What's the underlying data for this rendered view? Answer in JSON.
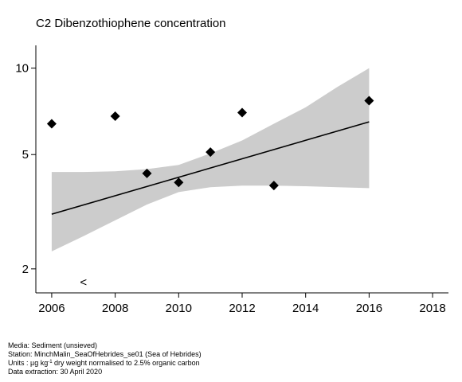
{
  "chart_data": {
    "type": "line",
    "title": "C2 Dibenzothiophene concentration",
    "xlabel": "",
    "ylabel": "",
    "y_scale": "log",
    "xlim": [
      2005.5,
      2018.5
    ],
    "ylim": [
      1.65,
      12
    ],
    "x_ticks": [
      2006,
      2008,
      2010,
      2012,
      2014,
      2016,
      2018
    ],
    "y_ticks": [
      2,
      5,
      10
    ],
    "grid": false,
    "legend": "none",
    "series": [
      {
        "type": "scatter",
        "x": [
          2006,
          2008,
          2009,
          2010,
          2011,
          2012,
          2013,
          2016
        ],
        "y": [
          6.4,
          6.8,
          4.3,
          4.0,
          5.1,
          7.0,
          3.9,
          7.7
        ]
      }
    ],
    "trend": {
      "x": [
        2006,
        2016
      ],
      "y": [
        3.1,
        6.5
      ]
    },
    "confidence_band": {
      "x": [
        2006,
        2007,
        2008,
        2009,
        2010,
        2011,
        2012,
        2013,
        2014,
        2015,
        2016
      ],
      "lower": [
        2.3,
        2.6,
        2.95,
        3.35,
        3.7,
        3.85,
        3.9,
        3.9,
        3.88,
        3.85,
        3.82
      ],
      "upper": [
        4.35,
        4.35,
        4.37,
        4.45,
        4.6,
        5.05,
        5.6,
        6.4,
        7.3,
        8.6,
        10.0
      ]
    },
    "annotations": [
      {
        "text": "<",
        "x": 2007,
        "y": 1.8
      }
    ],
    "colors": {
      "band": "#cccccc",
      "points": "#000000",
      "line": "#000000"
    }
  },
  "footer": {
    "media": "Media: Sediment (unsieved)",
    "station": "Station: MinchMalin_SeaOfHebrides_se01 (Sea of Hebrides)",
    "units_prefix": "Units : µg kg",
    "units_sup": "-1",
    "units_suffix": " dry weight normalised to 2.5% organic carbon",
    "extraction": "Data extraction: 30 April 2020"
  }
}
